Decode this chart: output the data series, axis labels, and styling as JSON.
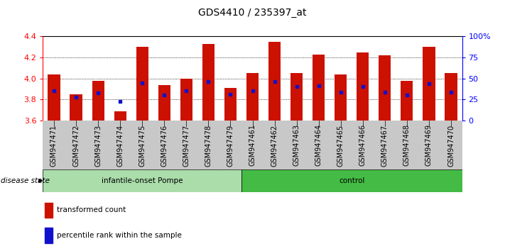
{
  "title": "GDS4410 / 235397_at",
  "samples": [
    "GSM947471",
    "GSM947472",
    "GSM947473",
    "GSM947474",
    "GSM947475",
    "GSM947476",
    "GSM947477",
    "GSM947478",
    "GSM947479",
    "GSM947461",
    "GSM947462",
    "GSM947463",
    "GSM947464",
    "GSM947465",
    "GSM947466",
    "GSM947467",
    "GSM947468",
    "GSM947469",
    "GSM947470"
  ],
  "bar_heights": [
    4.04,
    3.85,
    3.98,
    3.69,
    4.3,
    3.94,
    4.0,
    4.33,
    3.91,
    4.05,
    4.35,
    4.05,
    4.23,
    4.04,
    4.25,
    4.22,
    3.98,
    4.3,
    4.05
  ],
  "blue_dot_y": [
    3.88,
    3.82,
    3.86,
    3.78,
    3.96,
    3.84,
    3.88,
    3.97,
    3.85,
    3.88,
    3.97,
    3.92,
    3.93,
    3.87,
    3.92,
    3.87,
    3.84,
    3.95,
    3.87
  ],
  "ylim_left": [
    3.6,
    4.4
  ],
  "bar_color": "#cc1100",
  "dot_color": "#1111cc",
  "groups": [
    {
      "label": "infantile-onset Pompe",
      "count": 9,
      "color": "#aaddaa"
    },
    {
      "label": "control",
      "count": 10,
      "color": "#44bb44"
    }
  ],
  "disease_state_label": "disease state",
  "legend_items": [
    {
      "label": "transformed count",
      "color": "#cc1100"
    },
    {
      "label": "percentile rank within the sample",
      "color": "#1111cc"
    }
  ],
  "title_fontsize": 10,
  "label_fontsize": 7.5,
  "tick_fontsize": 7,
  "bar_bottom": 3.6,
  "left_yticks": [
    3.6,
    3.8,
    4.0,
    4.2,
    4.4
  ],
  "right_ticks": [
    0,
    25,
    50,
    75,
    100
  ],
  "right_tick_labels": [
    "0",
    "25",
    "50",
    "75",
    "100%"
  ],
  "xtick_bg": "#c8c8c8",
  "group1_count": 9,
  "group2_count": 10
}
